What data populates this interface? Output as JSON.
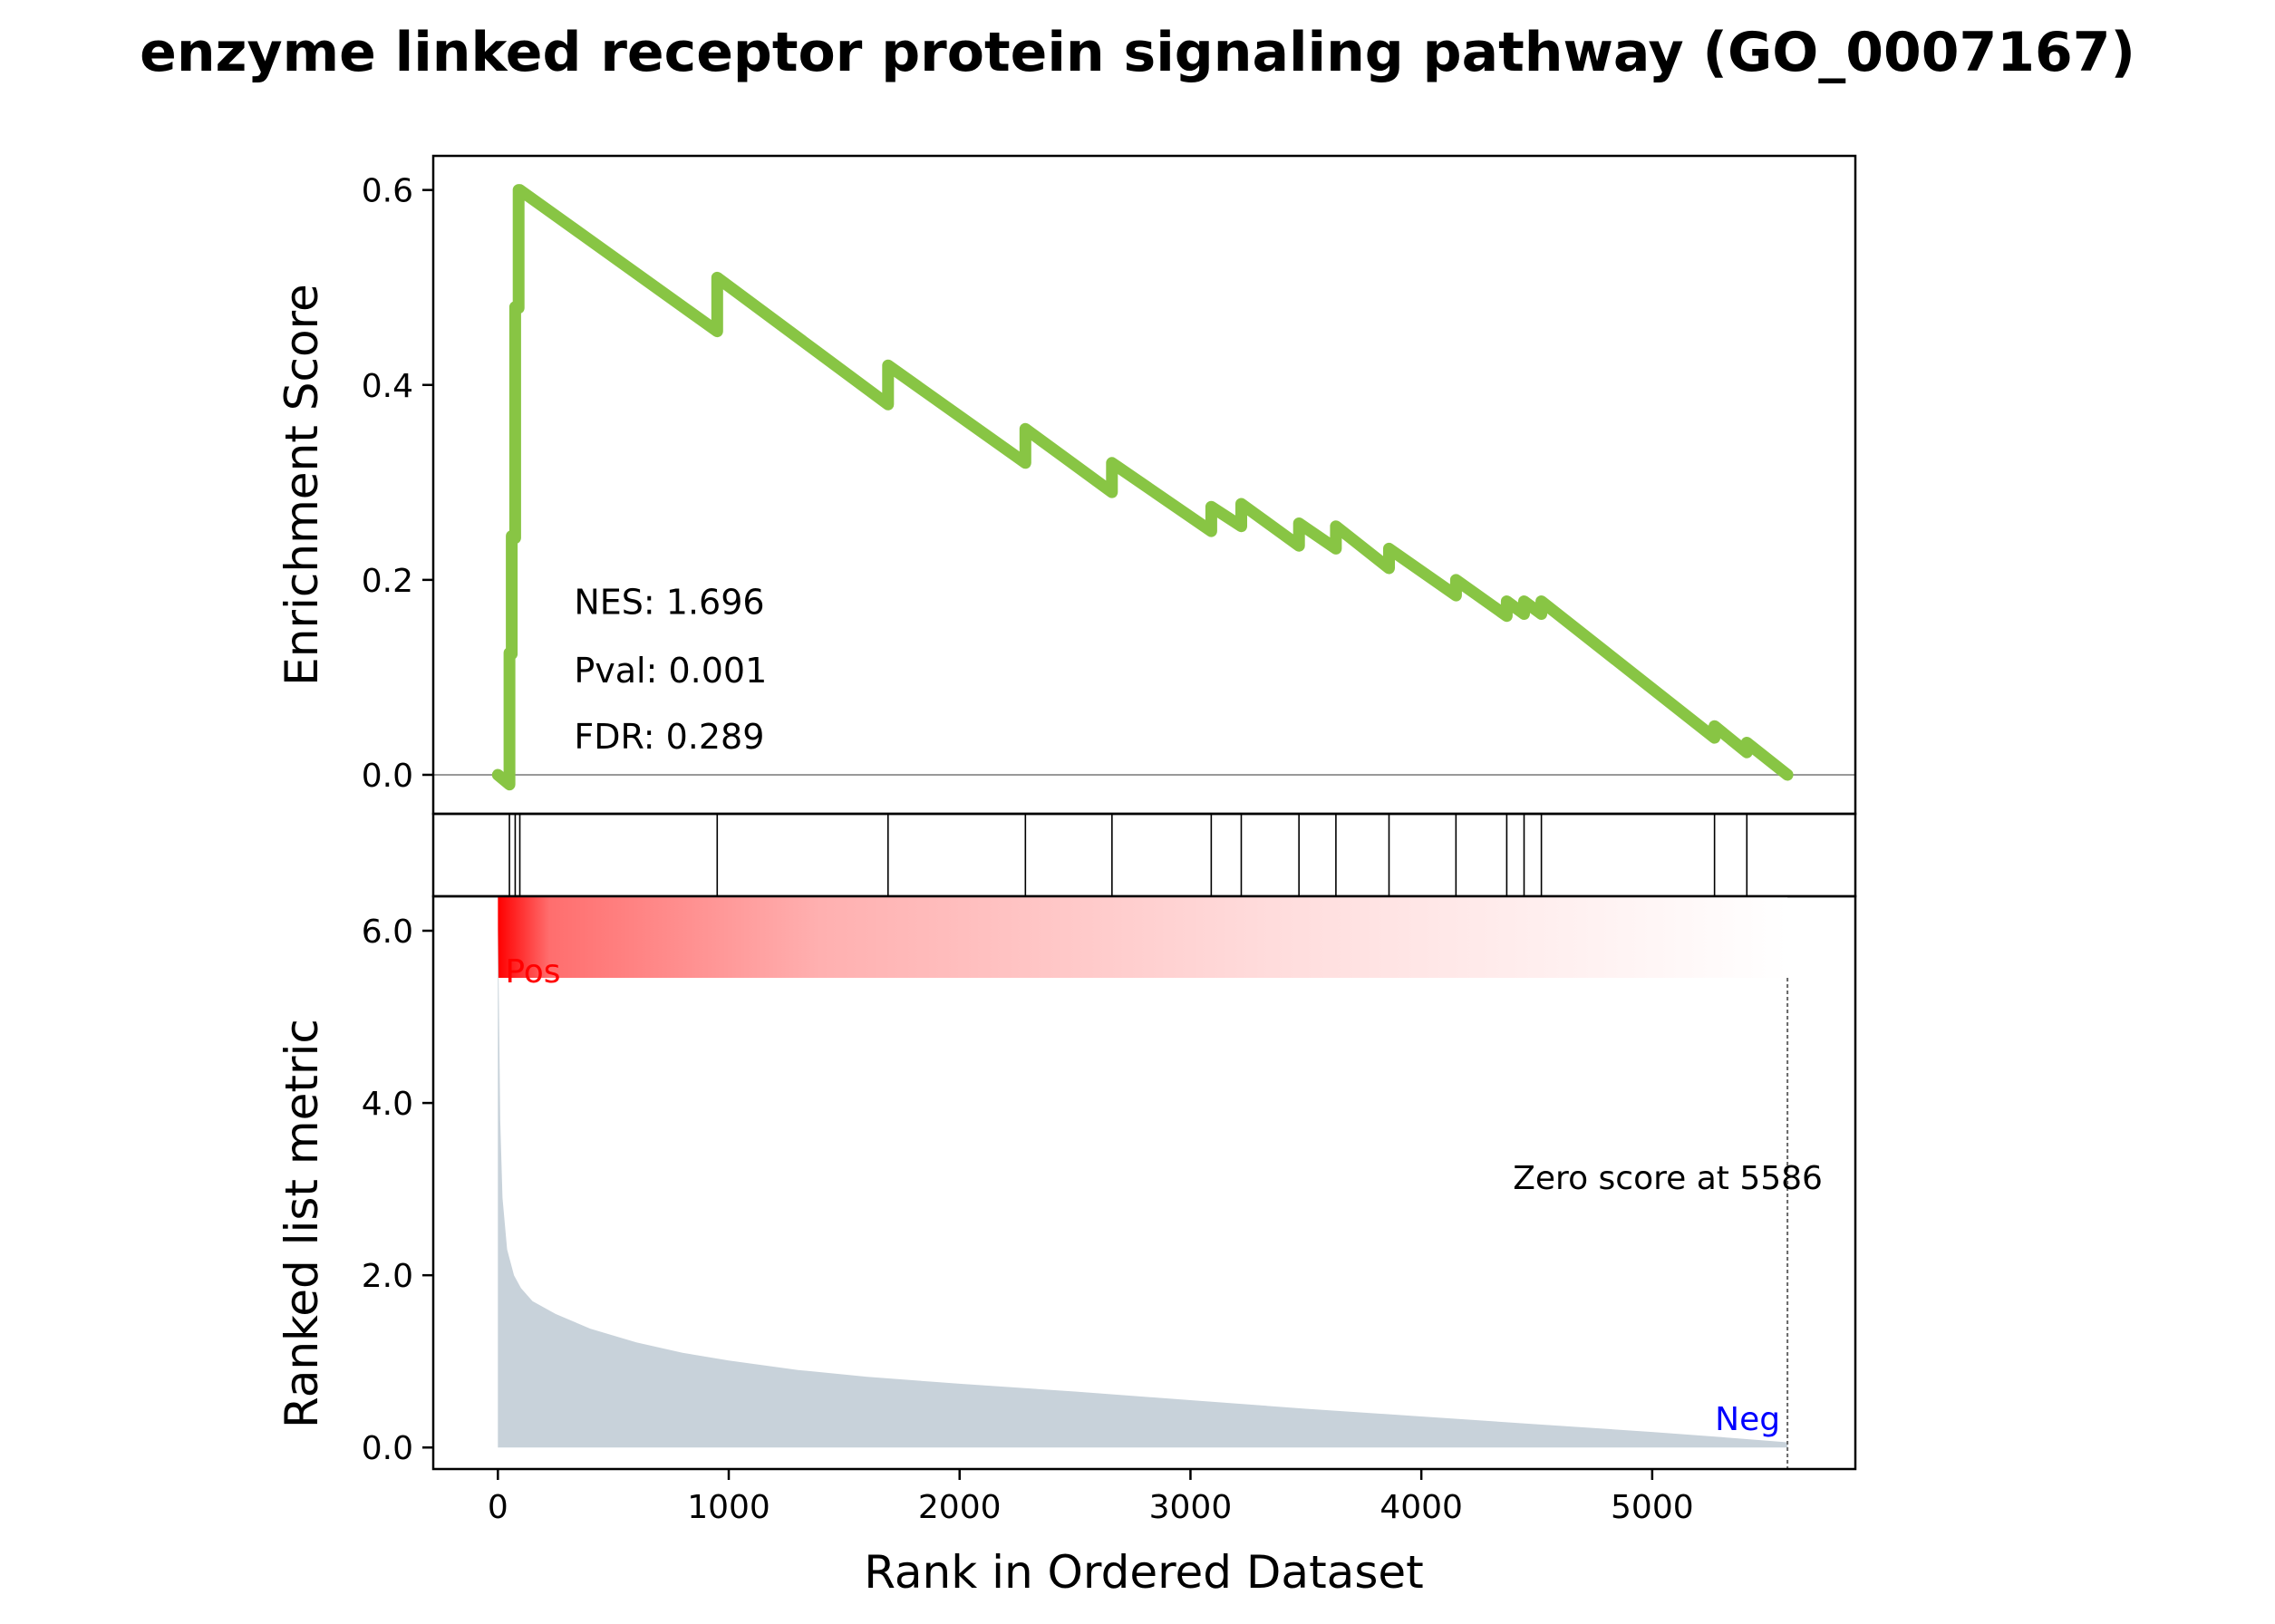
{
  "chart_data": {
    "type": "line",
    "title": "enzyme linked receptor protein signaling pathway (GO_0007167)",
    "xlabel": "Rank in Ordered Dataset",
    "xlim": [
      -280,
      5880
    ],
    "xticks": [
      0,
      1000,
      2000,
      3000,
      4000,
      5000
    ],
    "xtick_labels": [
      "0",
      "1000",
      "2000",
      "3000",
      "4000",
      "5000"
    ],
    "panels": {
      "enrichment": {
        "ylabel": "Enrichment Score",
        "ylim": [
          -0.04,
          0.635
        ],
        "yticks": [
          0.0,
          0.2,
          0.4,
          0.6
        ],
        "ytick_labels": [
          "0.0",
          "0.2",
          "0.4",
          "0.6"
        ],
        "zero_line": true,
        "color": "#88c544",
        "series": {
          "x": [
            0,
            50,
            50,
            60,
            60,
            75,
            75,
            90,
            90,
            95,
            95,
            950,
            950,
            1690,
            1690,
            2285,
            2285,
            2660,
            2660,
            3090,
            3090,
            3220,
            3220,
            3470,
            3470,
            3630,
            3630,
            3860,
            3860,
            4150,
            4150,
            4370,
            4370,
            4445,
            4445,
            4520,
            4520,
            5270,
            5270,
            5410,
            5410,
            5586
          ],
          "y": [
            0.0,
            -0.01,
            0.125,
            0.124,
            0.245,
            0.243,
            0.48,
            0.479,
            0.6,
            0.6,
            0.6,
            0.455,
            0.51,
            0.38,
            0.42,
            0.32,
            0.355,
            0.29,
            0.32,
            0.25,
            0.275,
            0.255,
            0.278,
            0.235,
            0.258,
            0.232,
            0.255,
            0.212,
            0.232,
            0.184,
            0.2,
            0.163,
            0.178,
            0.165,
            0.178,
            0.165,
            0.178,
            0.038,
            0.05,
            0.023,
            0.033,
            0.0
          ]
        },
        "annotations": [
          {
            "text": "NES: 1.696",
            "x": 330,
            "y": 0.165
          },
          {
            "text": "Pval: 0.001",
            "x": 330,
            "y": 0.095
          },
          {
            "text": "FDR: 0.289",
            "x": 330,
            "y": 0.027
          }
        ]
      },
      "hits": {
        "positions": [
          50,
          75,
          95,
          950,
          1690,
          2285,
          2660,
          3090,
          3220,
          3470,
          3630,
          3860,
          4150,
          4370,
          4445,
          4520,
          5270,
          5410
        ]
      },
      "heatmap": {
        "x_start": 0,
        "x_end": 5586,
        "color_high": "#ff0000",
        "color_low": "#ffffff"
      },
      "ranked": {
        "ylabel": "Ranked list metric",
        "ylim": [
          -0.25,
          6.4
        ],
        "yticks": [
          0.0,
          2.0,
          4.0,
          6.0
        ],
        "ytick_labels": [
          "0.0",
          "2.0",
          "4.0",
          "6.0"
        ],
        "fill_color": "#c8d2da",
        "x": [
          0,
          10,
          20,
          40,
          70,
          100,
          150,
          250,
          400,
          600,
          800,
          1000,
          1300,
          1600,
          2000,
          2500,
          3000,
          3500,
          4000,
          4500,
          5000,
          5300,
          5586
        ],
        "y": [
          6.2,
          3.8,
          2.9,
          2.3,
          2.0,
          1.85,
          1.7,
          1.55,
          1.38,
          1.22,
          1.1,
          1.01,
          0.9,
          0.82,
          0.74,
          0.65,
          0.55,
          0.45,
          0.36,
          0.27,
          0.18,
          0.12,
          0.06
        ],
        "zero_cross": 5586,
        "zero_label": "Zero score at 5586",
        "pos_label": "Pos",
        "neg_label": "Neg",
        "pos_color": "#ff0000",
        "neg_color": "#0000ff"
      }
    }
  }
}
